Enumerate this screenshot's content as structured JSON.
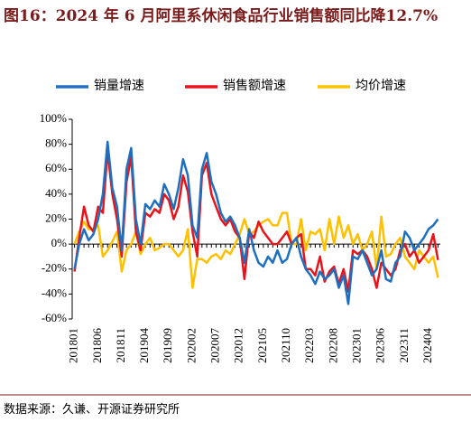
{
  "chart_data": {
    "type": "line",
    "title": "图16：2024 年 6 月阿里系休闲食品行业销售额同比降12.7%",
    "source": "数据来源：久谦、开源证券研究所",
    "categories": [
      "201801",
      null,
      null,
      null,
      null,
      "201806",
      null,
      null,
      null,
      null,
      "201811",
      null,
      null,
      null,
      null,
      "201904",
      null,
      null,
      null,
      null,
      "201909",
      null,
      null,
      null,
      null,
      "202002",
      null,
      null,
      null,
      null,
      "202007",
      null,
      null,
      null,
      null,
      "202012",
      null,
      null,
      null,
      null,
      "202105",
      null,
      null,
      null,
      null,
      "202110",
      null,
      null,
      null,
      null,
      "202203",
      null,
      null,
      null,
      null,
      "202208",
      null,
      null,
      null,
      null,
      "202301",
      null,
      null,
      null,
      null,
      "202306",
      null,
      null,
      null,
      null,
      "202311",
      null,
      null,
      null,
      null,
      "202404",
      null,
      null
    ],
    "series": [
      {
        "name": "销量增速",
        "color": "#1f6fc0",
        "values": [
          -20,
          0,
          12,
          3,
          8,
          20,
          40,
          82,
          45,
          30,
          -5,
          60,
          77,
          20,
          0,
          32,
          28,
          35,
          30,
          48,
          40,
          28,
          45,
          68,
          55,
          15,
          5,
          60,
          73,
          50,
          40,
          25,
          18,
          22,
          15,
          5,
          -15,
          12,
          -5,
          -15,
          -18,
          -10,
          -15,
          -5,
          -15,
          -12,
          0,
          5,
          -10,
          -20,
          -25,
          -32,
          -22,
          -28,
          -25,
          -20,
          -35,
          -25,
          -48,
          -10,
          -12,
          -5,
          -15,
          -25,
          -20,
          -5,
          -28,
          -30,
          -15,
          -10,
          10,
          5,
          -5,
          0,
          5,
          12,
          15,
          20
        ]
      },
      {
        "name": "销售额增速",
        "color": "#e8141a",
        "values": [
          -22,
          5,
          30,
          15,
          10,
          30,
          25,
          75,
          40,
          20,
          -10,
          50,
          70,
          10,
          -5,
          25,
          22,
          28,
          25,
          40,
          35,
          20,
          30,
          55,
          42,
          10,
          -10,
          55,
          65,
          40,
          30,
          20,
          15,
          20,
          10,
          5,
          -28,
          10,
          5,
          18,
          10,
          5,
          0,
          0,
          5,
          10,
          0,
          5,
          8,
          -20,
          -20,
          -25,
          -10,
          -30,
          -22,
          -18,
          -32,
          -20,
          -38,
          -5,
          -8,
          -5,
          -10,
          -20,
          -35,
          -15,
          -20,
          -25,
          -20,
          -5,
          0,
          -10,
          -5,
          -15,
          -10,
          -5,
          8,
          -12.7
        ]
      },
      {
        "name": "均价增速",
        "color": "#ffc000",
        "values": [
          0,
          10,
          18,
          12,
          12,
          15,
          -10,
          -5,
          2,
          10,
          -22,
          -5,
          0,
          10,
          -8,
          0,
          5,
          -5,
          -3,
          0,
          0,
          -5,
          -10,
          -5,
          12,
          -35,
          -12,
          -12,
          -15,
          -10,
          -8,
          -12,
          -5,
          -8,
          0,
          8,
          20,
          8,
          10,
          15,
          18,
          20,
          15,
          15,
          25,
          25,
          0,
          0,
          20,
          -5,
          10,
          8,
          12,
          -5,
          20,
          0,
          22,
          5,
          15,
          0,
          8,
          -5,
          0,
          10,
          -20,
          22,
          -10,
          -8,
          0,
          5,
          -10,
          -15,
          -20,
          -5,
          -10,
          -15,
          -10,
          -27
        ]
      }
    ],
    "ylim": [
      -60,
      100
    ],
    "yticks": [
      {
        "value": -60,
        "label": "-60%"
      },
      {
        "value": -40,
        "label": "-40%"
      },
      {
        "value": -20,
        "label": "-20%"
      },
      {
        "value": 0,
        "label": "0%"
      },
      {
        "value": 20,
        "label": "20%"
      },
      {
        "value": 40,
        "label": "40%"
      },
      {
        "value": 60,
        "label": "60%"
      },
      {
        "value": 80,
        "label": "80%"
      },
      {
        "value": 100,
        "label": "100%"
      }
    ],
    "legend": "top"
  }
}
